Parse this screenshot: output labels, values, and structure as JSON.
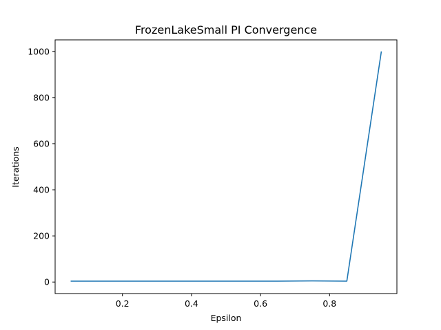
{
  "chart_data": {
    "type": "line",
    "title": "FrozenLakeSmall PI Convergence",
    "xlabel": "Epsilon",
    "ylabel": "Iterations",
    "xlim": [
      0.005,
      0.995
    ],
    "ylim": [
      -50,
      1050
    ],
    "xticks": [
      0.2,
      0.4,
      0.6,
      0.8
    ],
    "xtick_labels": [
      "0.2",
      "0.4",
      "0.6",
      "0.8"
    ],
    "yticks": [
      0,
      200,
      400,
      600,
      800,
      1000
    ],
    "ytick_labels": [
      "0",
      "200",
      "400",
      "600",
      "800",
      "1000"
    ],
    "grid": false,
    "series": [
      {
        "color": "#1f77b4",
        "x": [
          0.05,
          0.15,
          0.25,
          0.35,
          0.45,
          0.55,
          0.65,
          0.75,
          0.85,
          0.95
        ],
        "y": [
          4,
          4,
          4,
          4,
          4,
          4,
          4,
          5,
          4,
          1000
        ]
      }
    ]
  }
}
